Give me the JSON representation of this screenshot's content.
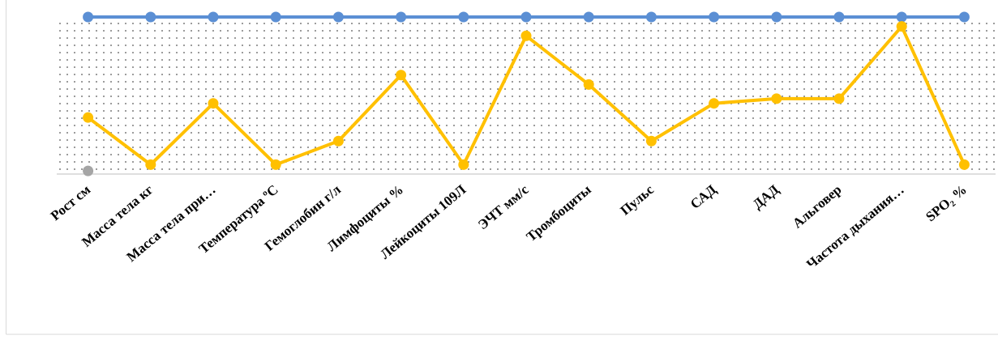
{
  "chart_data": {
    "type": "line",
    "categories": [
      "Рост    см",
      "Масса тела    кг",
      "Масса тела при…",
      "Температура    ºС",
      "Гемоглобин    г/л",
      "Лимфоциты %",
      "Лейкоциты 109Л",
      "ЭЧТ мм/с",
      "Тромбоциты",
      "Пульс",
      "САД",
      "ДАД",
      "Альговер",
      "Частота дыхания…",
      "SPO₂ %"
    ],
    "series": [
      {
        "color": "#5b8fd4",
        "values": [
          1,
          1,
          1,
          1,
          1,
          1,
          1,
          1,
          1,
          1,
          1,
          1,
          1,
          1,
          1
        ]
      },
      {
        "color": "#ffc000",
        "values": [
          0.36,
          0.06,
          0.45,
          0.06,
          0.21,
          0.63,
          0.06,
          0.88,
          0.57,
          0.21,
          0.45,
          0.48,
          0.48,
          0.94,
          0.06
        ]
      },
      {
        "color": "#a5a5a5",
        "values": [
          0.02,
          null,
          null,
          null,
          null,
          null,
          null,
          null,
          null,
          null,
          null,
          null,
          null,
          null,
          null
        ]
      }
    ],
    "ylim": [
      0,
      1
    ]
  }
}
